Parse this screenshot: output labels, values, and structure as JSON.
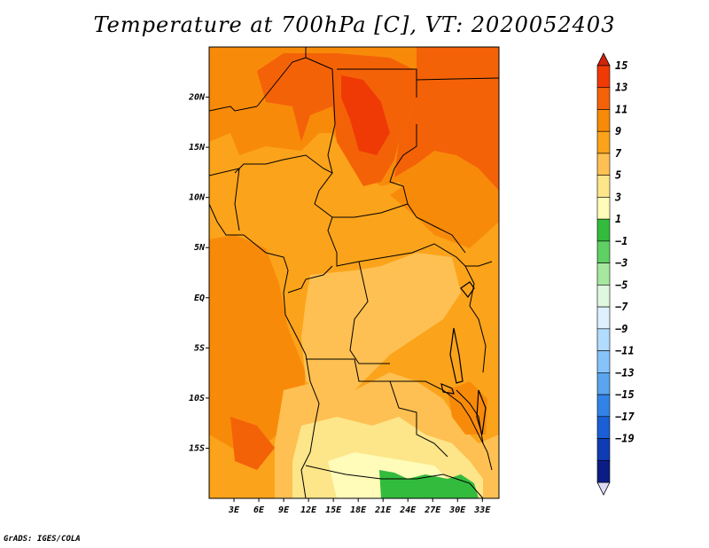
{
  "title": "Temperature at 700hPa [C], VT: 2020052403",
  "credit": "GrADS: IGES/COLA",
  "map": {
    "lon_range": [
      0,
      35
    ],
    "lat_range": [
      -20,
      25
    ],
    "lon_ticks": [
      {
        "value": 3,
        "label": "3E"
      },
      {
        "value": 6,
        "label": "6E"
      },
      {
        "value": 9,
        "label": "9E"
      },
      {
        "value": 12,
        "label": "12E"
      },
      {
        "value": 15,
        "label": "15E"
      },
      {
        "value": 18,
        "label": "18E"
      },
      {
        "value": 21,
        "label": "21E"
      },
      {
        "value": 24,
        "label": "24E"
      },
      {
        "value": 27,
        "label": "27E"
      },
      {
        "value": 30,
        "label": "30E"
      },
      {
        "value": 33,
        "label": "33E"
      }
    ],
    "lat_ticks": [
      {
        "value": 20,
        "label": "20N"
      },
      {
        "value": 15,
        "label": "15N"
      },
      {
        "value": 10,
        "label": "10N"
      },
      {
        "value": 5,
        "label": "5N"
      },
      {
        "value": 0,
        "label": "EQ"
      },
      {
        "value": -5,
        "label": "5S"
      },
      {
        "value": -10,
        "label": "10S"
      },
      {
        "value": -15,
        "label": "15S"
      }
    ]
  },
  "colorbar": {
    "levels": [
      15,
      13,
      11,
      9,
      7,
      5,
      3,
      1,
      -1,
      -3,
      -5,
      -7,
      -9,
      -11,
      -13,
      -15,
      -17,
      -19
    ],
    "labels": [
      "15",
      "13",
      "11",
      "9",
      "7",
      "5",
      "3",
      "1",
      "−1",
      "−3",
      "−5",
      "−7",
      "−9",
      "−11",
      "−13",
      "−15",
      "−17",
      "−19"
    ],
    "colors": [
      "#f03a06",
      "#f46208",
      "#f88a0a",
      "#fba31a",
      "#fec052",
      "#fde58a",
      "#fffbb8",
      "#33bb3d",
      "#5fd064",
      "#a5e89e",
      "#dff7df",
      "#dcf0ff",
      "#b1dcff",
      "#86c3fb",
      "#5aa5ee",
      "#3183e6",
      "#1a5fd5",
      "#0f3cb3",
      "#0b1d84"
    ],
    "top_arrow_color": "#d0230b",
    "bottom_arrow_color": "#dcdcf6"
  }
}
